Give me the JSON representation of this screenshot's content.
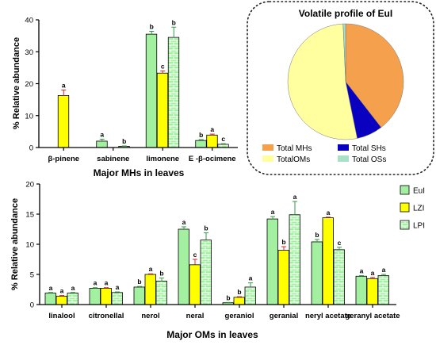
{
  "chart_data": [
    {
      "type": "bar",
      "xlabel": "Major MHs in leaves",
      "ylabel": "% Relative abundance",
      "ylim": [
        0,
        40
      ],
      "yticks": [
        0,
        10,
        20,
        30,
        40
      ],
      "categories": [
        "β-pinene",
        "sabinene",
        "limonene",
        "E -β-ocimene"
      ],
      "series": [
        {
          "name": "EuI",
          "color": "#a3f0a0",
          "pattern": "none",
          "values": [
            null,
            2.0,
            35.5,
            2.2
          ],
          "errors": [
            null,
            0.6,
            0.9,
            0.3
          ],
          "labels": [
            "",
            "a",
            "b",
            "b"
          ]
        },
        {
          "name": "LZI",
          "color": "#ffff00",
          "pattern": "none",
          "values": [
            16.3,
            null,
            23.3,
            3.9
          ],
          "errors": [
            1.7,
            null,
            0.7,
            0.3
          ],
          "labels": [
            "a",
            "",
            "c",
            "a"
          ]
        },
        {
          "name": "LPI",
          "color": "#a3f0a0",
          "pattern": "bricks",
          "values": [
            null,
            0.4,
            34.5,
            1.0
          ],
          "errors": [
            null,
            0.1,
            3.2,
            0.2
          ],
          "labels": [
            "",
            "b",
            "b",
            "c"
          ]
        }
      ]
    },
    {
      "type": "pie",
      "title": "Volatile profile of EuI",
      "slices": [
        {
          "label": "Total MHs",
          "value": 39.5,
          "color": "#f5a04c"
        },
        {
          "label": "Total SHs",
          "value": 7.3,
          "color": "#0a00c0"
        },
        {
          "label": "TotalOMs",
          "value": 52.5,
          "color": "#ffffa0"
        },
        {
          "label": "Total OSs",
          "value": 0.7,
          "color": "#a8e0c8"
        }
      ]
    },
    {
      "type": "bar",
      "xlabel": "Major OMs in leaves",
      "ylabel": "% Relative abundance",
      "ylim": [
        0,
        20
      ],
      "yticks": [
        0,
        5,
        10,
        15,
        20
      ],
      "categories": [
        "linalool",
        "citronellal",
        "nerol",
        "neral",
        "geraniol",
        "geranial",
        "neryl acetate",
        "geranyl acetate"
      ],
      "legend": {
        "position": "right",
        "entries": [
          "EuI",
          "LZI",
          "LPI"
        ]
      },
      "series": [
        {
          "name": "EuI",
          "color": "#a3f0a0",
          "pattern": "none",
          "values": [
            1.9,
            2.7,
            2.9,
            12.5,
            0.3,
            14.2,
            10.4,
            4.7
          ],
          "errors": [
            0.1,
            0.1,
            0.1,
            0.4,
            0.05,
            0.4,
            0.4,
            0.1
          ],
          "labels": [
            "a",
            "a",
            "b",
            "a",
            "b",
            "a",
            "b",
            "a"
          ]
        },
        {
          "name": "LZI",
          "color": "#ffff00",
          "pattern": "none",
          "values": [
            1.4,
            2.7,
            5.0,
            6.6,
            1.2,
            9.0,
            14.4,
            4.3
          ],
          "errors": [
            0.1,
            0.1,
            0.1,
            0.9,
            0.1,
            0.6,
            0.1,
            0.2
          ],
          "labels": [
            "a",
            "a",
            "a",
            "c",
            "b",
            "b",
            "a",
            "a"
          ]
        },
        {
          "name": "LPI",
          "color": "#a3f0a0",
          "pattern": "bricks",
          "values": [
            1.9,
            2.0,
            3.9,
            10.7,
            2.9,
            14.9,
            9.1,
            4.8
          ],
          "errors": [
            0.1,
            0.1,
            0.5,
            1.2,
            0.7,
            2.2,
            0.4,
            0.2
          ],
          "labels": [
            "a",
            "a",
            "b",
            "b",
            "a",
            "a",
            "c",
            "a"
          ]
        }
      ]
    }
  ]
}
